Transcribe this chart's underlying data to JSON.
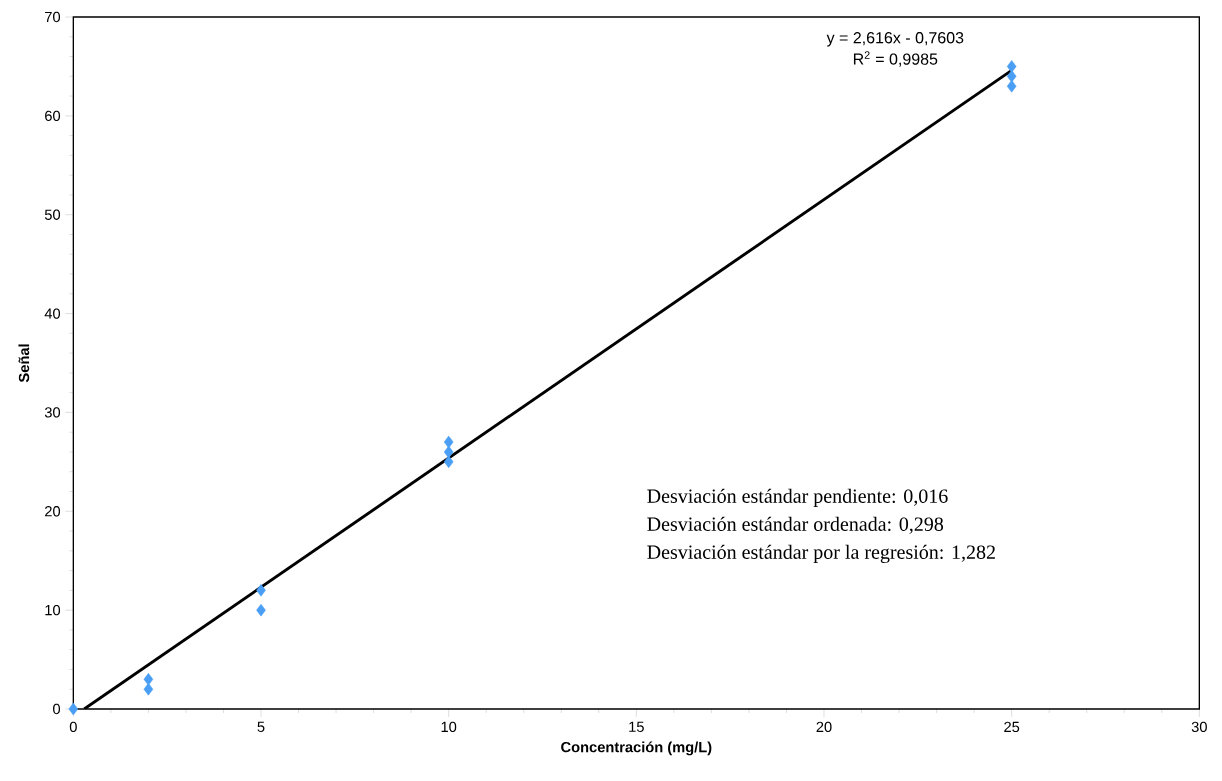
{
  "chart_data": {
    "type": "scatter",
    "xlabel": "Concentración (mg/L)",
    "ylabel": "Señal",
    "xlim": [
      0,
      30
    ],
    "xticks": [
      0,
      5,
      10,
      15,
      20,
      25,
      30
    ],
    "ylim": [
      0,
      70
    ],
    "yticks": [
      0,
      10,
      20,
      30,
      40,
      50,
      60,
      70
    ],
    "grid": false,
    "marker": "diamond",
    "series": [
      {
        "color": "#4a9ff5",
        "x": [
          0,
          2,
          2,
          5,
          5,
          10,
          10,
          10,
          25,
          25,
          25
        ],
        "values": [
          0,
          2,
          3,
          10,
          12,
          25,
          26,
          27,
          63,
          64,
          65
        ]
      },
      {
        "type": "line",
        "color": "#000000",
        "marker": "none",
        "x": [
          0.29,
          25
        ],
        "values": [
          0,
          64.6
        ]
      }
    ],
    "annotations": [
      "y = 2,616x - 0,7603",
      "R$^{2}$ = 0,9985",
      "Desviación estándar pendiente: 0,016",
      "Desviación estándar ordenada: 0,298",
      "Desviación estándar por la regresión: 1,282"
    ]
  }
}
